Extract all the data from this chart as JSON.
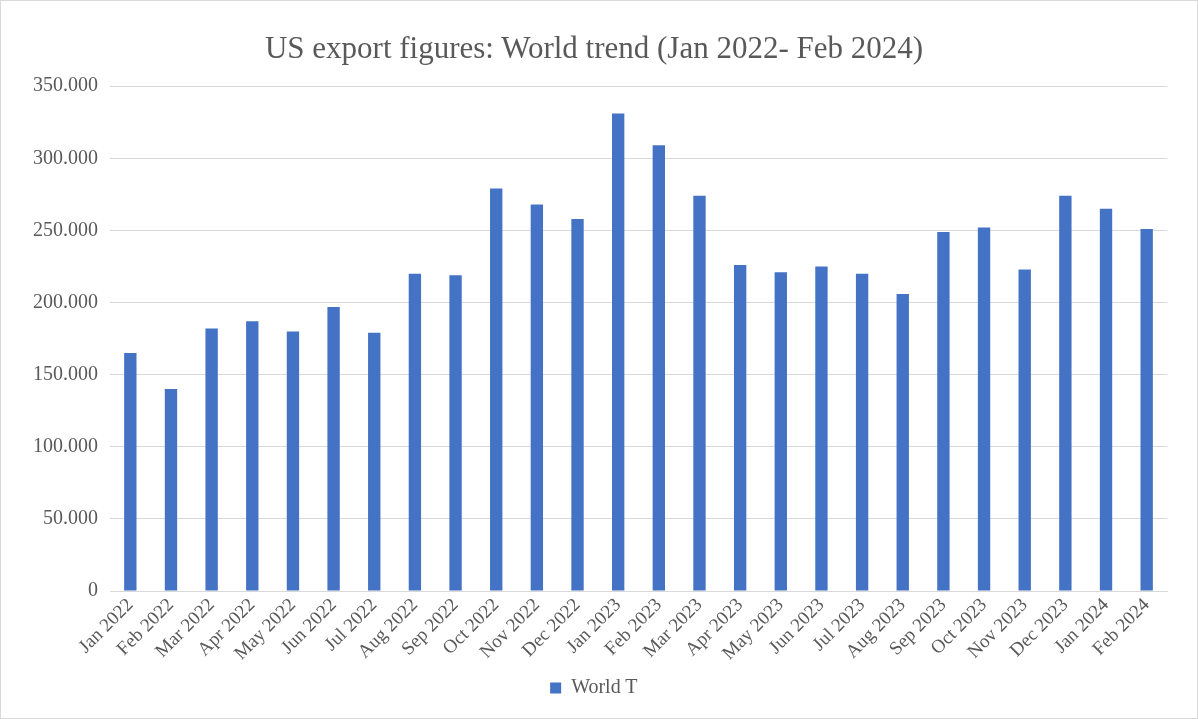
{
  "chart_data": {
    "type": "bar",
    "title": "US export figures: World trend (Jan 2022- Feb 2024)",
    "categories": [
      "Jan 2022",
      "Feb 2022",
      "Mar 2022",
      "Apr 2022",
      "May 2022",
      "Jun 2022",
      "Jul 2022",
      "Aug 2022",
      "Sep 2022",
      "Oct 2022",
      "Nov 2022",
      "Dec 2022",
      "Jan 2023",
      "Feb 2023",
      "Mar 2023",
      "Apr 2023",
      "May 2023",
      "Jun 2023",
      "Jul 2023",
      "Aug 2023",
      "Sep 2023",
      "Oct 2023",
      "Nov 2023",
      "Dec 2023",
      "Jan 2024",
      "Feb 2024"
    ],
    "series": [
      {
        "name": "World T",
        "color": "#4472c4",
        "values": [
          165000,
          140000,
          182000,
          187000,
          180000,
          197000,
          179000,
          220000,
          219000,
          279000,
          268000,
          258000,
          331000,
          309000,
          274000,
          226000,
          221000,
          225000,
          220000,
          206000,
          249000,
          252000,
          223000,
          274000,
          265000,
          251000
        ]
      }
    ],
    "ylim": [
      0,
      350000
    ],
    "yticks": [
      {
        "value": 0,
        "label": "0"
      },
      {
        "value": 50000,
        "label": "50.000"
      },
      {
        "value": 100000,
        "label": "100.000"
      },
      {
        "value": 150000,
        "label": "150.000"
      },
      {
        "value": 200000,
        "label": "200.000"
      },
      {
        "value": 250000,
        "label": "250.000"
      },
      {
        "value": 300000,
        "label": "300.000"
      },
      {
        "value": 350000,
        "label": "350.000"
      }
    ],
    "grid": "y",
    "legend": "bottom"
  }
}
